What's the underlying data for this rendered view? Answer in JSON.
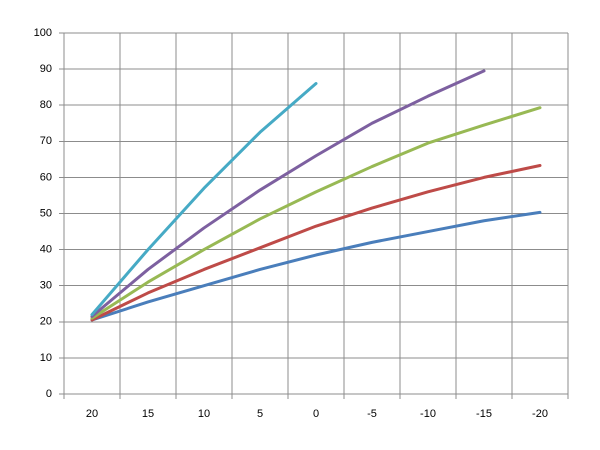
{
  "chart_data": {
    "type": "line",
    "categories": [
      "20",
      "15",
      "10",
      "5",
      "0",
      "-5",
      "-10",
      "-15",
      "-20"
    ],
    "series": [
      {
        "color": "#4a7ebb",
        "values": [
          20.5,
          25.5,
          30,
          34.5,
          38.5,
          42,
          45,
          48,
          50.3
        ]
      },
      {
        "color": "#be4b48",
        "values": [
          20.5,
          28,
          34.5,
          40.5,
          46.5,
          51.5,
          56,
          60,
          63.3
        ]
      },
      {
        "color": "#98b954",
        "values": [
          21,
          31,
          40,
          48.5,
          56,
          63,
          69.5,
          74.5,
          79.3
        ]
      },
      {
        "color": "#7d60a0",
        "values": [
          21.5,
          34.5,
          46,
          56.5,
          66,
          75,
          82.5,
          89.5,
          null
        ]
      },
      {
        "color": "#46aac5",
        "values": [
          22,
          40,
          57,
          72.5,
          86,
          null,
          null,
          null,
          null
        ]
      }
    ],
    "ylim": [
      0,
      100
    ],
    "yticks": [
      0,
      10,
      20,
      30,
      40,
      50,
      60,
      70,
      80,
      90,
      100
    ],
    "grid": true
  }
}
